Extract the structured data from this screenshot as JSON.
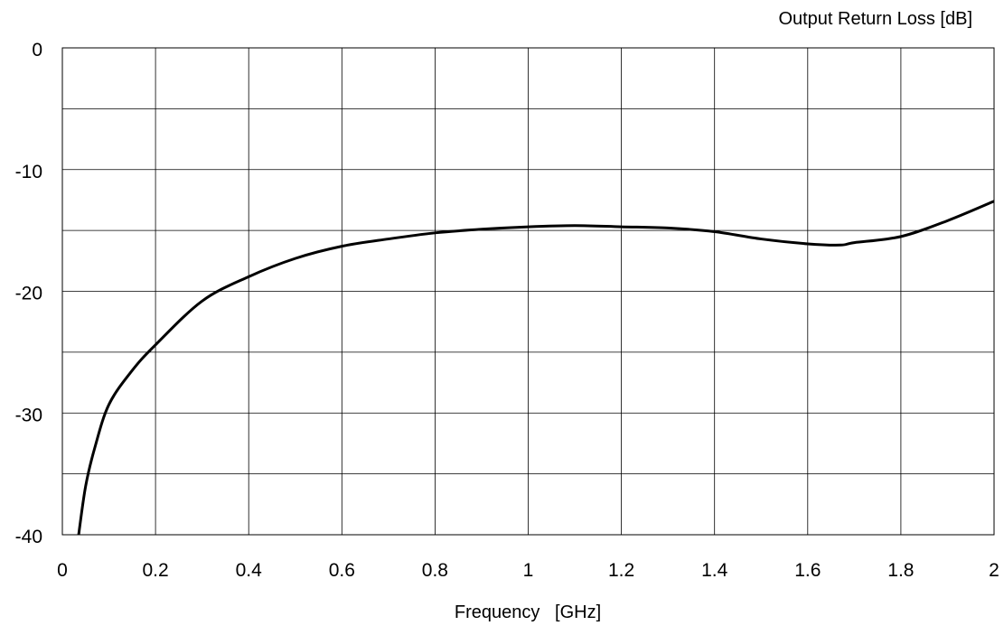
{
  "chart_data": {
    "type": "line",
    "title": "Output Return Loss [dB]",
    "xlabel": "Frequency   [GHz]",
    "ylabel": "",
    "xlim": [
      0,
      2
    ],
    "ylim": [
      -40,
      0
    ],
    "x_ticks": [
      0,
      0.2,
      0.4,
      0.6,
      0.8,
      1,
      1.2,
      1.4,
      1.6,
      1.8,
      2
    ],
    "x_tick_labels": [
      "0",
      "0.2",
      "0.4",
      "0.6",
      "0.8",
      "1",
      "1.2",
      "1.4",
      "1.6",
      "1.8",
      "2"
    ],
    "y_ticks": [
      0,
      -10,
      -20,
      -30,
      -40
    ],
    "y_tick_labels": [
      "0",
      "-10",
      "-20",
      "-30",
      "-40"
    ],
    "y_minor_grid": [
      -5,
      -15,
      -25,
      -35
    ],
    "grid": true,
    "legend": "none",
    "series": [
      {
        "color": "#000000",
        "x": [
          0.035,
          0.05,
          0.07,
          0.1,
          0.15,
          0.2,
          0.3,
          0.4,
          0.5,
          0.6,
          0.7,
          0.8,
          0.9,
          1.0,
          1.1,
          1.2,
          1.3,
          1.4,
          1.5,
          1.6,
          1.67,
          1.7,
          1.8,
          1.9,
          2.0
        ],
        "y": [
          -40.0,
          -36.0,
          -32.8,
          -29.3,
          -26.5,
          -24.4,
          -20.8,
          -18.8,
          -17.3,
          -16.3,
          -15.7,
          -15.2,
          -14.9,
          -14.7,
          -14.6,
          -14.7,
          -14.8,
          -15.1,
          -15.7,
          -16.1,
          -16.2,
          -16.0,
          -15.5,
          -14.2,
          -12.6
        ]
      }
    ]
  }
}
